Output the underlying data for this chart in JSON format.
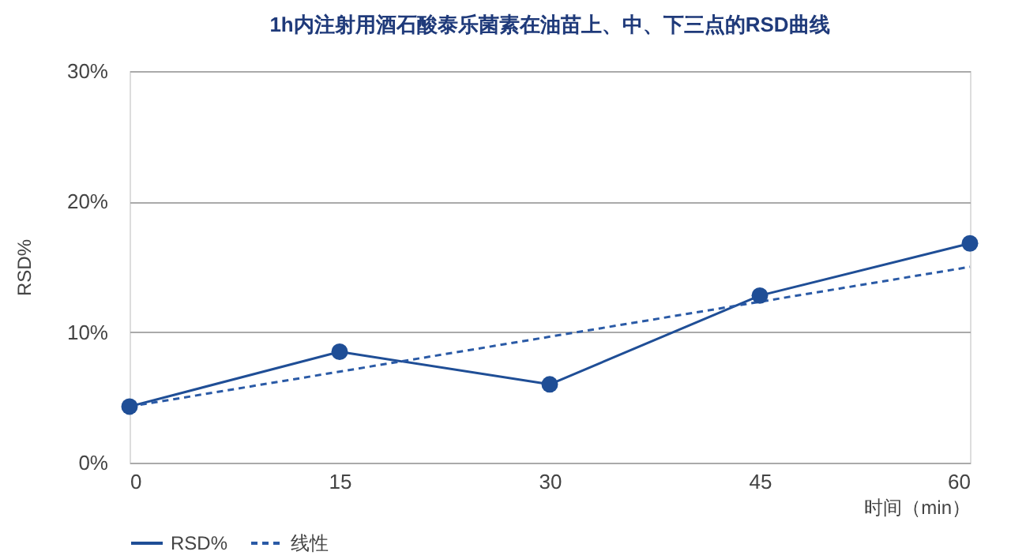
{
  "chart_data": {
    "type": "line",
    "title": "1h内注射用酒石酸泰乐菌素在油苗上、中、下三点的RSD曲线",
    "xlabel": "时间（min）",
    "ylabel": "RSD%",
    "x": [
      0,
      15,
      30,
      45,
      60
    ],
    "series": [
      {
        "name": "RSD%",
        "color": "#1f4e96",
        "values": [
          4.3,
          8.5,
          6.0,
          12.8,
          16.8
        ],
        "marker": "circle",
        "line_style": "solid"
      },
      {
        "name": "线性",
        "type": "line",
        "color": "#2a5aa6",
        "x": [
          0,
          60
        ],
        "values": [
          4.3,
          15.0
        ],
        "marker": "none",
        "line_style": "dashed"
      }
    ],
    "xlim": [
      0,
      60
    ],
    "xticks": [
      0,
      15,
      30,
      45,
      60
    ],
    "ylim": [
      0,
      30
    ],
    "yticks": [
      {
        "value": 0,
        "label": "0%"
      },
      {
        "value": 10,
        "label": "10%"
      },
      {
        "value": 20,
        "label": "20%"
      },
      {
        "value": 30,
        "label": "30%"
      }
    ],
    "grid": "y",
    "legend": "bottom"
  }
}
